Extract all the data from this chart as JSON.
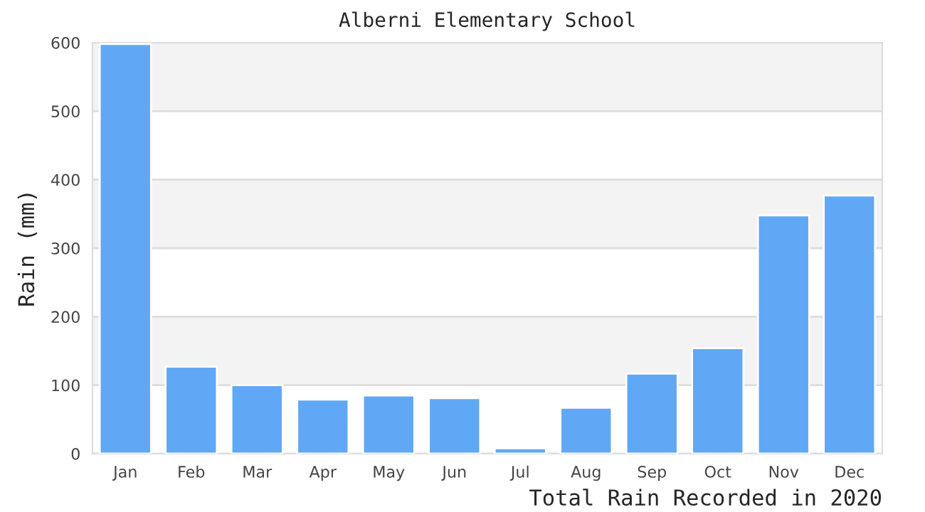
{
  "chart_data": {
    "type": "bar",
    "title": "Alberni Elementary School",
    "xlabel": "Total Rain Recorded in 2020",
    "ylabel": "Rain (mm)",
    "categories": [
      "Jan",
      "Feb",
      "Mar",
      "Apr",
      "May",
      "Jun",
      "Jul",
      "Aug",
      "Sep",
      "Oct",
      "Nov",
      "Dec"
    ],
    "values": [
      598,
      127,
      100,
      79,
      85,
      81,
      8,
      67,
      117,
      154,
      348,
      377
    ],
    "color": "#60a8f5",
    "ylim": [
      0,
      600
    ],
    "yticks": [
      0,
      100,
      200,
      300,
      400,
      500,
      600
    ],
    "grid": "y"
  }
}
